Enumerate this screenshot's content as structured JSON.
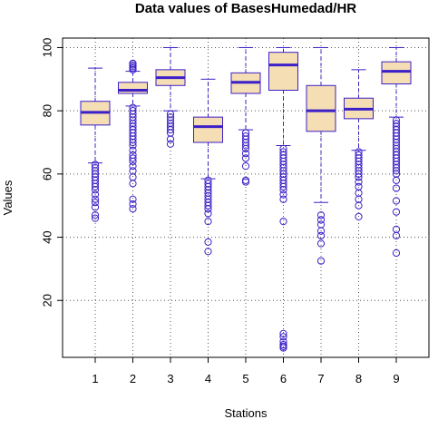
{
  "chart_data": {
    "type": "boxplot",
    "title": "Data values of BasesHumedad/HR",
    "xlabel": "Stations",
    "ylabel": "Values",
    "categories": [
      "1",
      "2",
      "3",
      "4",
      "5",
      "6",
      "7",
      "8",
      "9"
    ],
    "ylim": [
      2,
      103
    ],
    "yticks": [
      20,
      40,
      60,
      80,
      100
    ],
    "grid": true,
    "colors": {
      "box_fill": "#f5deb3",
      "stroke": "#3b1fc9",
      "grid": "#555555"
    },
    "boxes": [
      {
        "station": "1",
        "whisker_low": 63.5,
        "q1": 75.5,
        "median": 79.5,
        "q3": 83.0,
        "whisker_high": 93.5,
        "outliers": [
          46,
          47,
          49.5,
          51,
          52,
          53.5,
          55,
          56,
          57,
          58,
          59,
          60,
          61,
          62,
          63
        ]
      },
      {
        "station": "2",
        "whisker_low": 81.5,
        "q1": 85.5,
        "median": 86.5,
        "q3": 89.0,
        "whisker_high": 92.5,
        "outliers": [
          49,
          50.5,
          52,
          57,
          59,
          61,
          62.5,
          64,
          65,
          66,
          67.5,
          69,
          70,
          71,
          72,
          73,
          74,
          75,
          76,
          77,
          78,
          79,
          80,
          81,
          93,
          93.5,
          94,
          94.5,
          95
        ]
      },
      {
        "station": "3",
        "whisker_low": 80.0,
        "q1": 88.0,
        "median": 90.5,
        "q3": 93.0,
        "whisker_high": 100,
        "outliers": [
          69.5,
          71,
          73,
          74,
          75,
          76,
          77,
          78,
          79
        ]
      },
      {
        "station": "4",
        "whisker_low": 58.5,
        "q1": 70.0,
        "median": 75.0,
        "q3": 78.0,
        "whisker_high": 90.0,
        "outliers": [
          35.5,
          38.5,
          45,
          47.5,
          49,
          50,
          51,
          52,
          53,
          54,
          55,
          56,
          57,
          58
        ]
      },
      {
        "station": "5",
        "whisker_low": 74.0,
        "q1": 85.5,
        "median": 89.0,
        "q3": 92.0,
        "whisker_high": 100,
        "outliers": [
          57.5,
          58,
          62.5,
          65,
          66.5,
          68,
          69,
          70,
          71,
          72,
          73
        ]
      },
      {
        "station": "6",
        "whisker_low": 69.0,
        "q1": 86.5,
        "median": 94.5,
        "q3": 98.5,
        "whisker_high": 100,
        "outliers": [
          5,
          5.5,
          6,
          7,
          8.5,
          9.5,
          45,
          52,
          53.5,
          55,
          56,
          57,
          58,
          59,
          60,
          61,
          62,
          63,
          64,
          65,
          66,
          67,
          68
        ]
      },
      {
        "station": "7",
        "whisker_low": 51.0,
        "q1": 73.5,
        "median": 80.0,
        "q3": 88.0,
        "whisker_high": 100,
        "outliers": [
          32.5,
          38,
          40.5,
          42,
          44,
          45.5,
          47
        ]
      },
      {
        "station": "8",
        "whisker_low": 67.5,
        "q1": 77.5,
        "median": 80.5,
        "q3": 84.0,
        "whisker_high": 93.0,
        "outliers": [
          46.5,
          50,
          52,
          54,
          56,
          57.5,
          59,
          60,
          61,
          62,
          63,
          64,
          65,
          66,
          67
        ]
      },
      {
        "station": "9",
        "whisker_low": 78.0,
        "q1": 88.5,
        "median": 92.5,
        "q3": 95.5,
        "whisker_high": 100,
        "outliers": [
          35,
          40.5,
          42.5,
          48,
          51.5,
          55.5,
          58,
          60,
          61,
          62,
          63,
          64,
          65,
          66,
          67,
          68,
          69,
          70,
          71,
          72,
          73,
          74,
          75,
          76,
          77
        ]
      }
    ]
  }
}
